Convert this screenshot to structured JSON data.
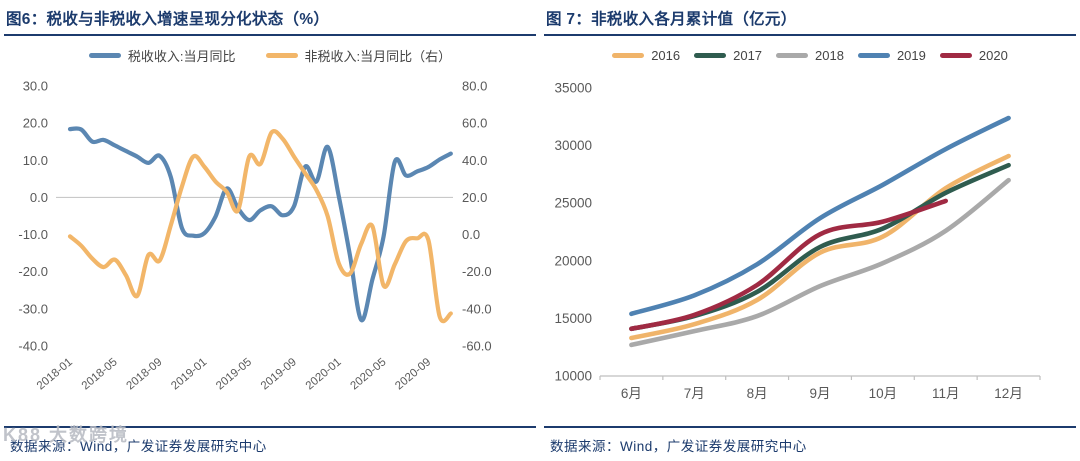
{
  "watermark": {
    "text": "K88 大数跨境"
  },
  "colors": {
    "navy": "#1c3b6d",
    "axis_label_gray": "#595959",
    "gridline_gray": "#c9c9c9",
    "baseline_gray": "#bfbfbf"
  },
  "chart_data": [
    {
      "type": "line",
      "title": "图6：税收与非税收入增速呈现分化状态（%）",
      "source": "数据来源：Wind，广发证券发展研究中心",
      "x": [
        "2018-01",
        "2018-02",
        "2018-03",
        "2018-04",
        "2018-05",
        "2018-06",
        "2018-07",
        "2018-08",
        "2018-09",
        "2018-10",
        "2018-11",
        "2018-12",
        "2019-01",
        "2019-02",
        "2019-03",
        "2019-04",
        "2019-05",
        "2019-06",
        "2019-07",
        "2019-08",
        "2019-09",
        "2019-10",
        "2019-11",
        "2019-12",
        "2020-01",
        "2020-02",
        "2020-03",
        "2020-04",
        "2020-05",
        "2020-06",
        "2020-07",
        "2020-08",
        "2020-09",
        "2020-10",
        "2020-11"
      ],
      "x_tick_labels": [
        "2018-01",
        "2018-05",
        "2018-09",
        "2019-01",
        "2019-05",
        "2019-09",
        "2020-01",
        "2020-05",
        "2020-09"
      ],
      "x_tick_interval": 4,
      "left_axis": {
        "min": -40,
        "max": 30,
        "ticks": [
          "30.0",
          "20.0",
          "10.0",
          "0.0",
          "-10.0",
          "-20.0",
          "-30.0",
          "-40.0"
        ]
      },
      "right_axis": {
        "min": -60,
        "max": 80,
        "ticks": [
          "80.0",
          "60.0",
          "40.0",
          "20.0",
          "0.0",
          "-20.0",
          "-40.0",
          "-60.0"
        ]
      },
      "gridline_at_left_value": 0,
      "legend_position": "top",
      "grid": "zero-line-only",
      "series": [
        {
          "name": "税收收入:当月同比",
          "axis": "left",
          "color": "#5b87b2",
          "values": [
            18.4,
            18.3,
            15.0,
            15.5,
            14.0,
            12.5,
            11.0,
            9.3,
            11.2,
            5.5,
            -8.3,
            -10.3,
            -9.6,
            -5.1,
            2.4,
            -2.9,
            -6.1,
            -3.5,
            -2.4,
            -4.8,
            -2.4,
            8.3,
            4.3,
            13.6,
            0.3,
            -15.7,
            -33.0,
            -22.1,
            -10.5,
            9.6,
            5.9,
            7.0,
            8.2,
            10.2,
            11.8
          ]
        },
        {
          "name": "非税收入:当月同比（右）",
          "axis": "right",
          "color": "#f2b669",
          "values": [
            -1.0,
            -6.0,
            -13.0,
            -17.5,
            -13.5,
            -22.0,
            -33.0,
            -11.0,
            -14.0,
            5.0,
            26.0,
            42.0,
            36.5,
            28.5,
            23.0,
            13.0,
            42.0,
            38.0,
            55.0,
            51.5,
            42.0,
            33.0,
            24.0,
            10.0,
            -15.5,
            -21.0,
            -5.0,
            4.5,
            -27.5,
            -16.0,
            -3.5,
            -2.0,
            -3.0,
            -44.0,
            -42.5
          ]
        }
      ]
    },
    {
      "type": "line",
      "title": "图 7：非税收入各月累计值（亿元）",
      "source": "数据来源：Wind，广发证券发展研究中心",
      "categories": [
        "6月",
        "7月",
        "8月",
        "9月",
        "10月",
        "11月",
        "12月"
      ],
      "y_axis": {
        "min": 10000,
        "max": 35000,
        "step": 5000,
        "ticks": [
          35000,
          30000,
          25000,
          20000,
          15000,
          10000
        ]
      },
      "legend_position": "top",
      "grid": "off",
      "series": [
        {
          "name": "2016",
          "color": "#f0b46a",
          "values": [
            13300,
            14500,
            16600,
            20700,
            22100,
            26300,
            29100
          ]
        },
        {
          "name": "2017",
          "color": "#2f5c4f",
          "values": [
            14100,
            15200,
            17300,
            21200,
            22800,
            25900,
            28300
          ]
        },
        {
          "name": "2018",
          "color": "#a9a9a9",
          "values": [
            12700,
            13900,
            15200,
            17800,
            19800,
            22600,
            27000
          ]
        },
        {
          "name": "2019",
          "color": "#4f82b2",
          "values": [
            15400,
            17000,
            19700,
            23700,
            26600,
            29700,
            32400
          ]
        },
        {
          "name": "2020",
          "color": "#a02a43",
          "values": [
            14100,
            15300,
            17900,
            22300,
            23400,
            25200,
            null
          ]
        }
      ]
    }
  ]
}
